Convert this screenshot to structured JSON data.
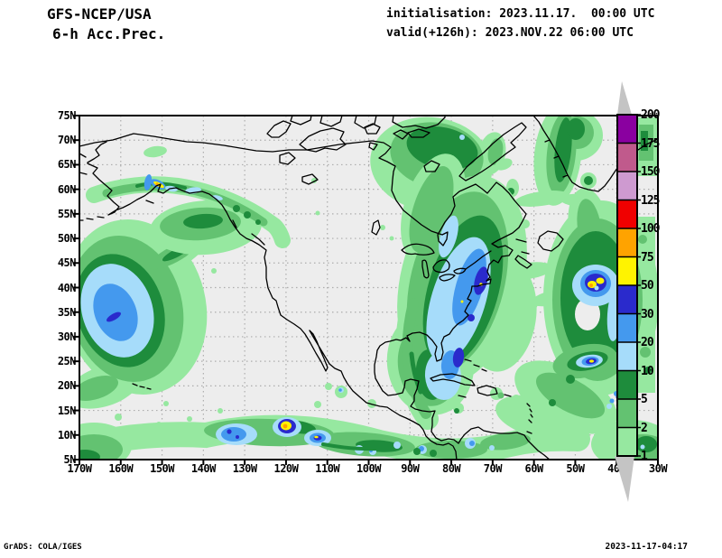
{
  "header": {
    "model": "GFS-NCEP/USA",
    "product": "6-h Acc.Prec.",
    "init_line": "initialisation: 2023.11.17.  00:00 UTC",
    "valid_line": "valid(+126h): 2023.NOV.22 06:00 UTC"
  },
  "axes": {
    "lat_labels": [
      "75N",
      "70N",
      "65N",
      "60N",
      "55N",
      "50N",
      "45N",
      "40N",
      "35N",
      "30N",
      "25N",
      "20N",
      "15N",
      "10N",
      "5N"
    ],
    "lon_labels": [
      "170W",
      "160W",
      "150W",
      "140W",
      "130W",
      "120W",
      "110W",
      "100W",
      "90W",
      "80W",
      "70W",
      "60W",
      "50W",
      "40W",
      "30W"
    ]
  },
  "colorbar": {
    "labels": [
      "200",
      "175",
      "150",
      "125",
      "100",
      "75",
      "50",
      "30",
      "20",
      "10",
      "5",
      "2",
      "1"
    ],
    "cell_colors": [
      "#8A00A0",
      "#C05A8C",
      "#CE9AD0",
      "#F00000",
      "#FFA300",
      "#FFF300",
      "#2A2ACC",
      "#4499EE",
      "#A6DCFA",
      "#1E8C3C",
      "#63C271",
      "#96E8A0"
    ],
    "overflow_color": "#C4C4C4"
  },
  "palette": {
    "lg": "#96E8A0",
    "g": "#63C271",
    "dg": "#1E8C3C",
    "lb": "#A6DCFA",
    "b": "#4499EE",
    "db": "#2A2ACC",
    "y": "#FFF300",
    "o": "#FFA300",
    "bg": "#EDEDED",
    "grid": "#ADADAD",
    "coast": "#000000"
  },
  "footer": {
    "left": "GrADS: COLA/IGES",
    "right": "2023-11-17-04:17"
  }
}
